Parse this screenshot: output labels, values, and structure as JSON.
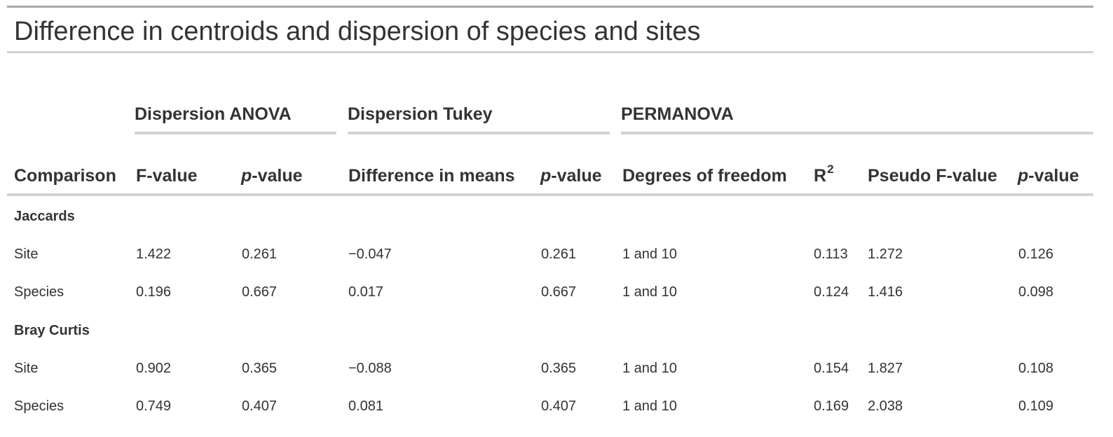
{
  "title": "Difference in centroids and dispersion of species and sites",
  "spanners": {
    "anova": "Dispersion ANOVA",
    "tukey": "Dispersion Tukey",
    "permanova": "PERMANOVA"
  },
  "columns": {
    "comparison": "Comparison",
    "f_value": "F-value",
    "p_italic": "p",
    "p_suffix": "-value",
    "diff_means": "Difference in means",
    "dof": "Degrees of freedom",
    "r2_base": "R",
    "r2_exp": "2",
    "pseudo_f": "Pseudo F-value"
  },
  "groups": [
    {
      "label": "Jaccards",
      "rows": [
        {
          "comparison": "Site",
          "anova_f": "1.422",
          "anova_p": "0.261",
          "tukey_diff": "−0.047",
          "tukey_p": "0.261",
          "dof": "1 and 10",
          "r2": "0.113",
          "pseudo_f": "1.272",
          "perm_p": "0.126"
        },
        {
          "comparison": "Species",
          "anova_f": "0.196",
          "anova_p": "0.667",
          "tukey_diff": "0.017",
          "tukey_p": "0.667",
          "dof": "1 and 10",
          "r2": "0.124",
          "pseudo_f": "1.416",
          "perm_p": "0.098"
        }
      ]
    },
    {
      "label": "Bray Curtis",
      "rows": [
        {
          "comparison": "Site",
          "anova_f": "0.902",
          "anova_p": "0.365",
          "tukey_diff": "−0.088",
          "tukey_p": "0.365",
          "dof": "1 and 10",
          "r2": "0.154",
          "pseudo_f": "1.827",
          "perm_p": "0.108"
        },
        {
          "comparison": "Species",
          "anova_f": "0.749",
          "anova_p": "0.407",
          "tukey_diff": "0.081",
          "tukey_p": "0.407",
          "dof": "1 and 10",
          "r2": "0.169",
          "pseudo_f": "2.038",
          "perm_p": "0.109"
        }
      ]
    }
  ]
}
